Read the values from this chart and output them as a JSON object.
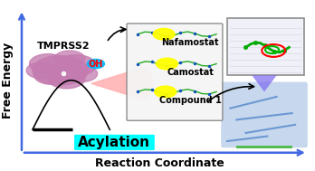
{
  "title": "",
  "background_color": "#ffffff",
  "axis_color": "#4169E1",
  "ylabel": "Free Energy",
  "xlabel": "Reaction Coordinate",
  "label_fontsize": 9,
  "label_fontweight": "bold",
  "acylation_text": "Acylation",
  "acylation_color": "#00FFFF",
  "acylation_fontsize": 11,
  "acylation_fontweight": "bold",
  "tmprss2_text": "TMPRSS2",
  "tmprss2_fontsize": 8,
  "tmprss2_fontweight": "bold",
  "oh_text": "OH",
  "oh_fontsize": 7,
  "nafamostat_text": "Nafamostat",
  "camostat_text": "Camostat",
  "compound_text": "Compound 1",
  "inhibitor_fontsize": 7,
  "inhibitor_fontweight": "bold",
  "protein_color": "#C47CB0",
  "reaction_curve_color": "#000000",
  "arrow_color": "#000000",
  "box_facecolor": "#f5f5f5",
  "box_edgecolor": "#888888",
  "red_circle_color": "#FF0000",
  "green_circle_color": "#00BB00",
  "purple_triangle_color": "#7B68EE",
  "green_bar_color": "#55BB55",
  "fan_color": "#FFB0B0",
  "yellow_spot_color": "#FFFF00",
  "oh_circle_color": "#00BBFF",
  "oh_text_color": "#FF0000"
}
